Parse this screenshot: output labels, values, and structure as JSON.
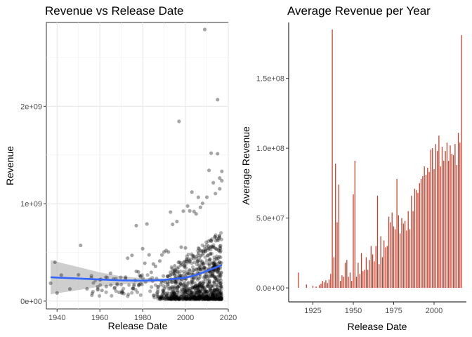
{
  "chart_data": [
    {
      "type": "scatter",
      "title": "Revenue vs Release Date",
      "xlabel": "Release Date",
      "ylabel": "Revenue",
      "xlim": [
        1935,
        2020
      ],
      "ylim": [
        -80000000,
        2860000000
      ],
      "x_ticks": [
        1940,
        1960,
        1980,
        2000,
        2020
      ],
      "x_tick_labels": [
        "1940",
        "1960",
        "1980",
        "2000",
        "2020"
      ],
      "y_ticks": [
        0,
        1000000000,
        2000000000
      ],
      "y_tick_labels": [
        "0e+00",
        "1e+09",
        "2e+09"
      ],
      "grid": true,
      "point_color": "#000000",
      "points": [
        {
          "x": 1937,
          "y": 184000000
        },
        {
          "x": 1939,
          "y": 400000000
        },
        {
          "x": 1940,
          "y": 84000000
        },
        {
          "x": 1942,
          "y": 267000000
        },
        {
          "x": 1946,
          "y": 125000000
        },
        {
          "x": 1950,
          "y": 270000000
        },
        {
          "x": 1951,
          "y": 572000000
        },
        {
          "x": 1954,
          "y": 126000000
        },
        {
          "x": 1956,
          "y": 240000000
        },
        {
          "x": 1959,
          "y": 146000000
        },
        {
          "x": 1960,
          "y": 220000000
        },
        {
          "x": 1961,
          "y": 110000000
        },
        {
          "x": 1963,
          "y": 150000000
        },
        {
          "x": 1965,
          "y": 286000000
        },
        {
          "x": 1967,
          "y": 140000000
        },
        {
          "x": 1969,
          "y": 90000000
        },
        {
          "x": 1970,
          "y": 170000000
        },
        {
          "x": 1972,
          "y": 246000000
        },
        {
          "x": 1973,
          "y": 441000000
        },
        {
          "x": 1975,
          "y": 470000000
        },
        {
          "x": 1977,
          "y": 775000000
        },
        {
          "x": 1977,
          "y": 306000000
        },
        {
          "x": 1978,
          "y": 300000000
        },
        {
          "x": 1980,
          "y": 538000000
        },
        {
          "x": 1981,
          "y": 389000000
        },
        {
          "x": 1982,
          "y": 792000000
        },
        {
          "x": 1983,
          "y": 475000000
        },
        {
          "x": 1984,
          "y": 296000000
        },
        {
          "x": 1985,
          "y": 381000000
        },
        {
          "x": 1986,
          "y": 357000000
        },
        {
          "x": 1988,
          "y": 412000000
        },
        {
          "x": 1989,
          "y": 474000000
        },
        {
          "x": 1990,
          "y": 505000000
        },
        {
          "x": 1991,
          "y": 520000000
        },
        {
          "x": 1992,
          "y": 504000000
        },
        {
          "x": 1993,
          "y": 914000000
        },
        {
          "x": 1994,
          "y": 788000000
        },
        {
          "x": 1995,
          "y": 362000000
        },
        {
          "x": 1996,
          "y": 817000000
        },
        {
          "x": 1997,
          "y": 1845000000
        },
        {
          "x": 1998,
          "y": 554000000
        },
        {
          "x": 1999,
          "y": 924000000
        },
        {
          "x": 2000,
          "y": 546000000
        },
        {
          "x": 2001,
          "y": 976000000
        },
        {
          "x": 2002,
          "y": 926000000
        },
        {
          "x": 2003,
          "y": 1119000000
        },
        {
          "x": 2004,
          "y": 920000000
        },
        {
          "x": 2005,
          "y": 896000000
        },
        {
          "x": 2006,
          "y": 1066000000
        },
        {
          "x": 2007,
          "y": 963000000
        },
        {
          "x": 2008,
          "y": 1004000000
        },
        {
          "x": 2009,
          "y": 2788000000
        },
        {
          "x": 2010,
          "y": 1067000000
        },
        {
          "x": 2011,
          "y": 1342000000
        },
        {
          "x": 2012,
          "y": 1519000000
        },
        {
          "x": 2013,
          "y": 1215000000
        },
        {
          "x": 2014,
          "y": 1104000000
        },
        {
          "x": 2015,
          "y": 2068000000
        },
        {
          "x": 2015,
          "y": 1513000000
        },
        {
          "x": 2016,
          "y": 1153000000
        },
        {
          "x": 2016,
          "y": 1263000000
        },
        {
          "x": 2017,
          "y": 1332000000
        },
        {
          "x": 2017,
          "y": 1236000000
        }
      ],
      "smooth": {
        "color": "#3366ff",
        "band_color": "#bdbdbd",
        "fit": [
          {
            "x": 1937,
            "y": 245000000
          },
          {
            "x": 1950,
            "y": 232000000
          },
          {
            "x": 1960,
            "y": 222000000
          },
          {
            "x": 1970,
            "y": 213000000
          },
          {
            "x": 1980,
            "y": 210000000
          },
          {
            "x": 1990,
            "y": 218000000
          },
          {
            "x": 2000,
            "y": 240000000
          },
          {
            "x": 2005,
            "y": 268000000
          },
          {
            "x": 2010,
            "y": 310000000
          },
          {
            "x": 2017,
            "y": 370000000
          }
        ],
        "upper": [
          {
            "x": 1937,
            "y": 420000000
          },
          {
            "x": 1950,
            "y": 350000000
          },
          {
            "x": 1960,
            "y": 295000000
          },
          {
            "x": 1970,
            "y": 255000000
          },
          {
            "x": 1980,
            "y": 235000000
          },
          {
            "x": 1990,
            "y": 233000000
          },
          {
            "x": 2000,
            "y": 252000000
          },
          {
            "x": 2005,
            "y": 280000000
          },
          {
            "x": 2010,
            "y": 328000000
          },
          {
            "x": 2017,
            "y": 400000000
          }
        ],
        "lower": [
          {
            "x": 1937,
            "y": 70000000
          },
          {
            "x": 1950,
            "y": 114000000
          },
          {
            "x": 1960,
            "y": 149000000
          },
          {
            "x": 1970,
            "y": 171000000
          },
          {
            "x": 1980,
            "y": 185000000
          },
          {
            "x": 1990,
            "y": 203000000
          },
          {
            "x": 2000,
            "y": 228000000
          },
          {
            "x": 2005,
            "y": 256000000
          },
          {
            "x": 2010,
            "y": 292000000
          },
          {
            "x": 2017,
            "y": 340000000
          }
        ]
      }
    },
    {
      "type": "bar",
      "title": "Average Revenue per Year",
      "xlabel": "Release Date",
      "ylabel": "Average Revenue",
      "xlim": [
        1910,
        2020
      ],
      "ylim": [
        -10000000,
        190000000
      ],
      "x_ticks": [
        1925,
        1950,
        1975,
        2000
      ],
      "x_tick_labels": [
        "1925",
        "1950",
        "1975",
        "2000"
      ],
      "y_ticks": [
        0,
        50000000,
        100000000,
        150000000
      ],
      "y_tick_labels": [
        "0.0e+00",
        "5.0e+07",
        "1.0e+08",
        "1.5e+08"
      ],
      "grid": false,
      "bar_color": "#c93d28",
      "years": [
        1916,
        1921,
        1925,
        1927,
        1929,
        1930,
        1931,
        1932,
        1933,
        1934,
        1935,
        1936,
        1937,
        1938,
        1939,
        1940,
        1941,
        1942,
        1943,
        1944,
        1945,
        1946,
        1947,
        1948,
        1949,
        1950,
        1951,
        1952,
        1953,
        1954,
        1955,
        1956,
        1957,
        1958,
        1959,
        1960,
        1961,
        1962,
        1963,
        1964,
        1965,
        1966,
        1967,
        1968,
        1969,
        1970,
        1971,
        1972,
        1973,
        1974,
        1975,
        1976,
        1977,
        1978,
        1979,
        1980,
        1981,
        1982,
        1983,
        1984,
        1985,
        1986,
        1987,
        1988,
        1989,
        1990,
        1991,
        1992,
        1993,
        1994,
        1995,
        1996,
        1997,
        1998,
        1999,
        2000,
        2001,
        2002,
        2003,
        2004,
        2005,
        2006,
        2007,
        2008,
        2009,
        2010,
        2011,
        2012,
        2013,
        2014,
        2015,
        2016,
        2017
      ],
      "values": [
        11000000,
        2500000,
        1500000,
        1000000,
        2000000,
        3000000,
        5000000,
        4000000,
        5500000,
        3500000,
        6000000,
        10000000,
        185000000,
        22000000,
        89000000,
        47000000,
        74000000,
        5000000,
        9000000,
        8000000,
        18000000,
        20000000,
        8000000,
        11000000,
        5000000,
        67000000,
        91000000,
        8000000,
        18000000,
        10000000,
        25000000,
        12000000,
        13000000,
        22000000,
        13000000,
        20000000,
        30000000,
        24000000,
        19000000,
        30000000,
        66000000,
        17000000,
        37000000,
        22000000,
        34000000,
        29000000,
        30000000,
        51000000,
        47000000,
        54000000,
        44000000,
        42000000,
        78000000,
        52000000,
        39000000,
        50000000,
        46000000,
        48000000,
        41000000,
        55000000,
        42000000,
        66000000,
        55000000,
        71000000,
        70000000,
        68000000,
        75000000,
        78000000,
        80000000,
        87000000,
        81000000,
        86000000,
        83000000,
        99000000,
        100000000,
        85000000,
        103000000,
        98000000,
        109000000,
        87000000,
        101000000,
        91000000,
        98000000,
        104000000,
        91000000,
        102000000,
        96000000,
        95000000,
        103000000,
        88000000,
        111000000,
        104000000,
        181000000
      ]
    }
  ]
}
